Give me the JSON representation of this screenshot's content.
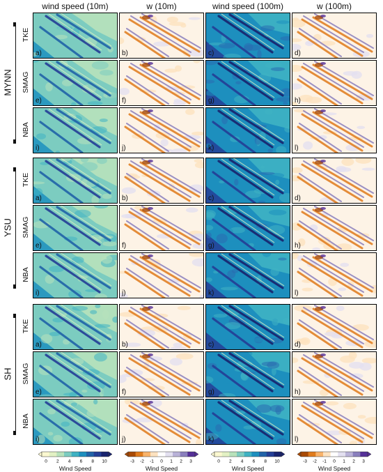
{
  "column_titles": [
    "wind speed (10m)",
    "w (10m)",
    "wind speed (100m)",
    "w (100m)"
  ],
  "groups": [
    {
      "name": "MYNN",
      "rows": [
        "TKE",
        "SMAG",
        "NBA"
      ],
      "letters": [
        "a)",
        "b)",
        "c)",
        "d)",
        "e)",
        "f)",
        "g)",
        "h)",
        "i)",
        "j)",
        "k)",
        "l)"
      ]
    },
    {
      "name": "YSU",
      "rows": [
        "TKE",
        "SMAG",
        "NBA"
      ],
      "letters": [
        "a)",
        "b)",
        "c)",
        "d)",
        "e)",
        "f)",
        "g)",
        "h)",
        "i)",
        "j)",
        "k)",
        "l)"
      ]
    },
    {
      "name": "SH",
      "rows": [
        "TKE",
        "SMAG",
        "NBA"
      ],
      "letters": [
        "a)",
        "b)",
        "c)",
        "d)",
        "e)",
        "f)",
        "g)",
        "h)",
        "i)",
        "j)",
        "k)",
        "l)"
      ]
    }
  ],
  "colorbars": [
    {
      "title": "Wind Speed",
      "ticks": [
        "0",
        "2",
        "4",
        "6",
        "8",
        "10"
      ],
      "colors": [
        "#fbf8d0",
        "#e3f1c4",
        "#b8e2bb",
        "#7cccc0",
        "#3fb2c3",
        "#1d8fbe",
        "#2163a8",
        "#243e96",
        "#18236e"
      ]
    },
    {
      "title": "Wind Speed",
      "ticks": [
        "-3",
        "-2",
        "-1",
        "0",
        "1",
        "2",
        "3"
      ],
      "colors": [
        "#a84a05",
        "#e07b1c",
        "#f9b36a",
        "#fde2bf",
        "#ffffff",
        "#e3e0f0",
        "#b9b2d8",
        "#8a7fbd",
        "#553098"
      ]
    },
    {
      "title": "Wind Speed",
      "ticks": [
        "0",
        "2",
        "4",
        "6",
        "8",
        "10"
      ],
      "colors": [
        "#fbf8d0",
        "#e3f1c4",
        "#b8e2bb",
        "#7cccc0",
        "#3fb2c3",
        "#1d8fbe",
        "#2163a8",
        "#243e96",
        "#18236e"
      ]
    },
    {
      "title": "Wind Speed",
      "ticks": [
        "-3",
        "-2",
        "-1",
        "0",
        "1",
        "2",
        "3"
      ],
      "colors": [
        "#a84a05",
        "#e07b1c",
        "#f9b36a",
        "#fde2bf",
        "#ffffff",
        "#e3e0f0",
        "#b9b2d8",
        "#8a7fbd",
        "#553098"
      ]
    }
  ]
}
